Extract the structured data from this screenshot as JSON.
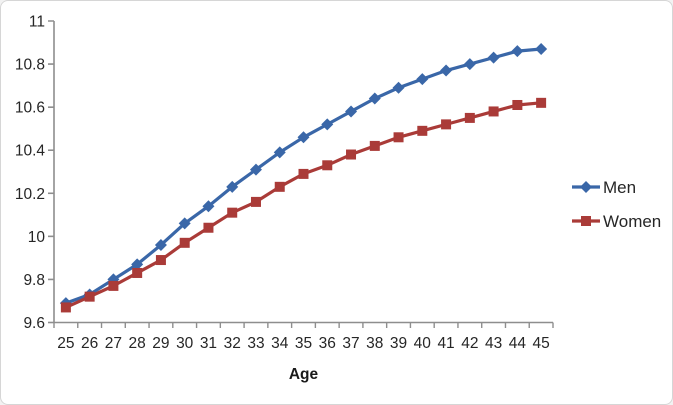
{
  "chart_data": {
    "type": "line",
    "title": "",
    "xlabel": "Age",
    "ylabel": "",
    "categories": [
      25,
      26,
      27,
      28,
      29,
      30,
      31,
      32,
      33,
      34,
      35,
      36,
      37,
      38,
      39,
      40,
      41,
      42,
      43,
      44,
      45
    ],
    "series": [
      {
        "name": "Men",
        "marker": "diamond",
        "color": "#3A67A8",
        "values": [
          9.69,
          9.73,
          9.8,
          9.87,
          9.96,
          10.06,
          10.14,
          10.23,
          10.31,
          10.39,
          10.46,
          10.52,
          10.58,
          10.64,
          10.69,
          10.73,
          10.77,
          10.8,
          10.83,
          10.86,
          10.87
        ]
      },
      {
        "name": "Women",
        "marker": "square",
        "color": "#AA3B38",
        "values": [
          9.67,
          9.72,
          9.77,
          9.83,
          9.89,
          9.97,
          10.04,
          10.11,
          10.16,
          10.23,
          10.29,
          10.33,
          10.38,
          10.42,
          10.46,
          10.49,
          10.52,
          10.55,
          10.58,
          10.61,
          10.62
        ]
      }
    ],
    "ylim": [
      9.6,
      11
    ],
    "yticks": [
      9.6,
      9.8,
      10,
      10.2,
      10.4,
      10.6,
      10.8,
      11
    ],
    "yticklabels": [
      "9.6",
      "9.8",
      "10",
      "10.2",
      "10.4",
      "10.6",
      "10.8",
      "11"
    ],
    "grid": false,
    "legend_position": "right"
  },
  "colors": {
    "axis": "#8E8E8E",
    "tick_label": "#262626",
    "background": "#FFFFFF",
    "border": "#D6D6D6"
  }
}
